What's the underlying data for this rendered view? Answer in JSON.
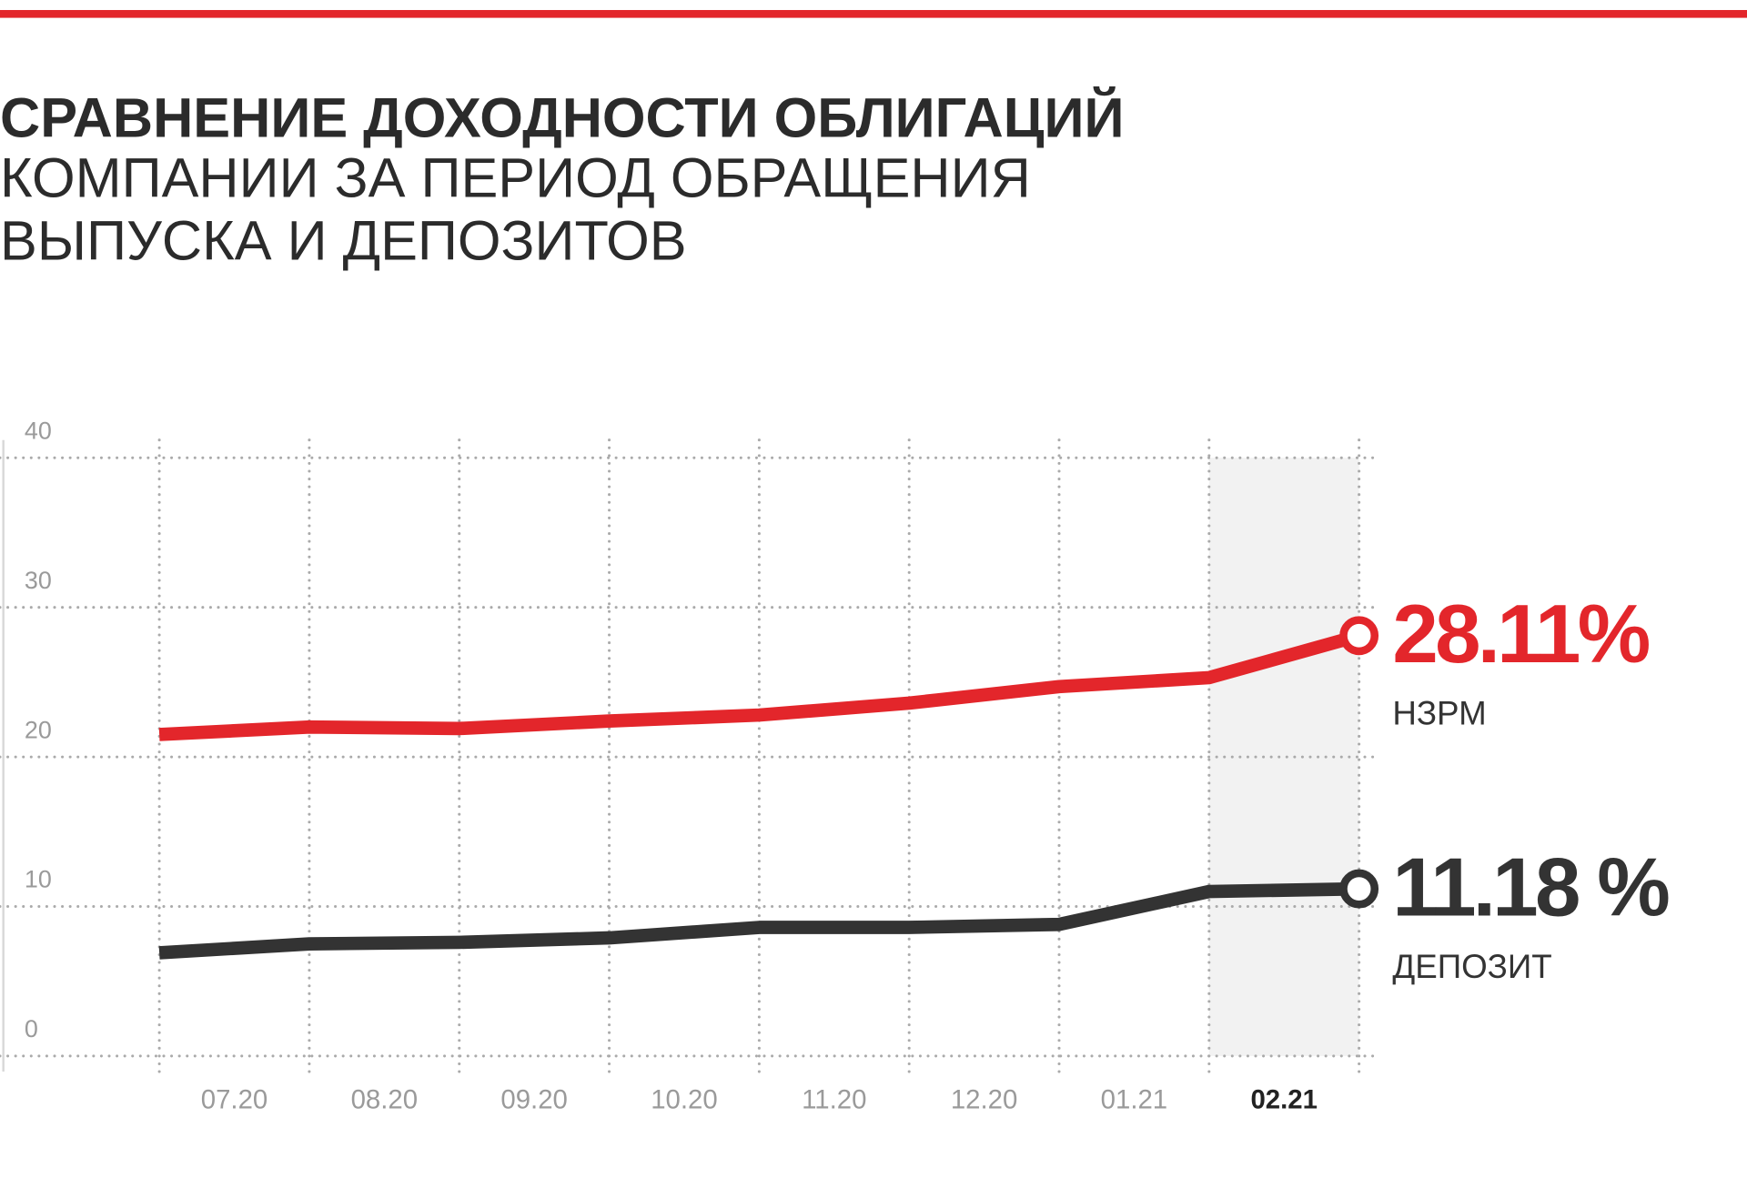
{
  "chart_data": {
    "type": "line",
    "title": "СРАВНЕНИЕ ДОХОДНОСТИ ОБЛИГАЦИЙ",
    "subtitle": [
      "КОМПАНИИ ЗА ПЕРИОД ОБРАЩЕНИЯ",
      "ВЫПУСКА И ДЕПОЗИТОВ"
    ],
    "categories": [
      "07.20",
      "08.20",
      "09.20",
      "10.20",
      "11.20",
      "12.20",
      "01.21",
      "02.21",
      null
    ],
    "highlight_index": 7,
    "series": [
      {
        "name": "НЗРМ",
        "color": "#e3262b",
        "values": [
          21.5,
          22.0,
          21.9,
          22.4,
          22.8,
          23.6,
          24.7,
          25.3,
          28.11
        ],
        "value_labels": [
          null,
          null,
          null,
          null,
          null,
          null,
          null,
          null,
          "28.11%"
        ]
      },
      {
        "name": "ДЕПОЗИТ",
        "color": "#333333",
        "values": [
          6.9,
          7.5,
          7.6,
          7.9,
          8.6,
          8.6,
          8.8,
          11.0,
          11.18
        ],
        "value_labels": [
          null,
          null,
          null,
          null,
          null,
          null,
          null,
          null,
          "11.18 %"
        ]
      }
    ],
    "ylim": [
      0,
      40
    ],
    "yticks": [
      0,
      10,
      20,
      30,
      40
    ],
    "grid": true
  }
}
